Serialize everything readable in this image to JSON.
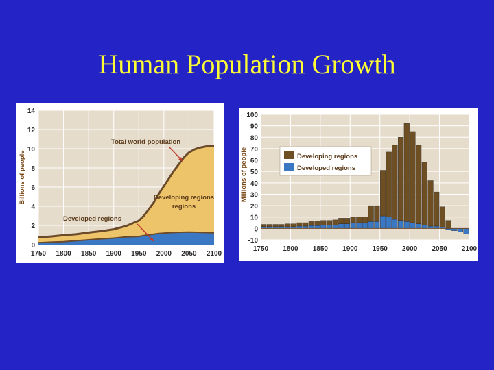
{
  "slide": {
    "title": "Human Population Growth"
  },
  "colors": {
    "background": "#2323c6",
    "title": "#ffff33",
    "plot_background": "#e6dccb",
    "developing": "#eec46a",
    "developed": "#3a78c4",
    "outline": "#6b4a2a",
    "bar_developing": "#6e4f23",
    "bar_developed": "#3a78c4",
    "annotation_red": "#c0392b"
  },
  "chart_data": [
    {
      "type": "area",
      "ylabel": "Billions of people",
      "xlabel": "",
      "xlim": [
        1750,
        2100
      ],
      "ylim": [
        0,
        14
      ],
      "x_ticks": [
        "1750",
        "1800",
        "1850",
        "1900",
        "1950",
        "2000",
        "2050",
        "2100"
      ],
      "y_ticks": [
        "0",
        "2",
        "4",
        "6",
        "8",
        "10",
        "12",
        "14"
      ],
      "grid": true,
      "x": [
        1750,
        1775,
        1800,
        1825,
        1850,
        1875,
        1900,
        1925,
        1950,
        1960,
        1970,
        1980,
        1990,
        2000,
        2010,
        2020,
        2030,
        2040,
        2050,
        2060,
        2070,
        2080,
        2090,
        2100
      ],
      "series": [
        {
          "name": "Developed regions",
          "values": [
            0.2,
            0.26,
            0.3,
            0.4,
            0.5,
            0.6,
            0.68,
            0.8,
            0.85,
            0.95,
            1.02,
            1.09,
            1.16,
            1.19,
            1.23,
            1.26,
            1.28,
            1.29,
            1.3,
            1.29,
            1.28,
            1.26,
            1.24,
            1.22
          ]
        },
        {
          "name": "Total world population",
          "values": [
            0.77,
            0.85,
            0.98,
            1.08,
            1.26,
            1.4,
            1.6,
            1.95,
            2.5,
            3.0,
            3.7,
            4.4,
            5.3,
            6.1,
            6.9,
            7.7,
            8.4,
            9.1,
            9.6,
            9.9,
            10.1,
            10.2,
            10.3,
            10.3
          ]
        }
      ],
      "annotations": [
        "Total world population",
        "Developing regions",
        "Developed regions"
      ]
    },
    {
      "type": "bar",
      "ylabel": "Millions of people",
      "xlabel": "",
      "xlim": [
        1750,
        2100
      ],
      "ylim": [
        -10,
        100
      ],
      "x_ticks": [
        "1750",
        "1800",
        "1850",
        "1900",
        "1950",
        "2000",
        "2050",
        "2100"
      ],
      "y_ticks": [
        "-10",
        "0",
        "10",
        "20",
        "30",
        "40",
        "50",
        "60",
        "70",
        "80",
        "90",
        "100"
      ],
      "grid": true,
      "legend": {
        "position": "top-left",
        "entries": [
          "Developing regions",
          "Developed regions"
        ]
      },
      "x": [
        1755,
        1765,
        1775,
        1785,
        1795,
        1805,
        1815,
        1825,
        1835,
        1845,
        1855,
        1865,
        1875,
        1885,
        1895,
        1905,
        1915,
        1925,
        1935,
        1945,
        1955,
        1965,
        1975,
        1985,
        1995,
        2005,
        2015,
        2025,
        2035,
        2045,
        2055,
        2065,
        2075,
        2085,
        2095
      ],
      "series": [
        {
          "name": "Developing regions",
          "values": [
            2,
            2,
            2,
            2,
            2.5,
            2.5,
            3,
            3,
            3.5,
            3.5,
            4,
            4,
            4.5,
            5,
            5,
            5,
            5,
            5,
            14,
            14,
            40,
            57,
            65,
            73,
            86,
            80,
            69,
            55,
            40,
            30,
            18,
            7,
            0,
            0,
            0
          ]
        },
        {
          "name": "Developed regions",
          "values": [
            1.5,
            1.5,
            1.5,
            1.5,
            1.5,
            1.5,
            2,
            2,
            2.5,
            2.5,
            3,
            3,
            3,
            4,
            4,
            5,
            5,
            5,
            6,
            6,
            11,
            10,
            8,
            7,
            6,
            5,
            4,
            3,
            2,
            2,
            1,
            -1,
            -2,
            -3,
            -5
          ]
        }
      ]
    }
  ]
}
